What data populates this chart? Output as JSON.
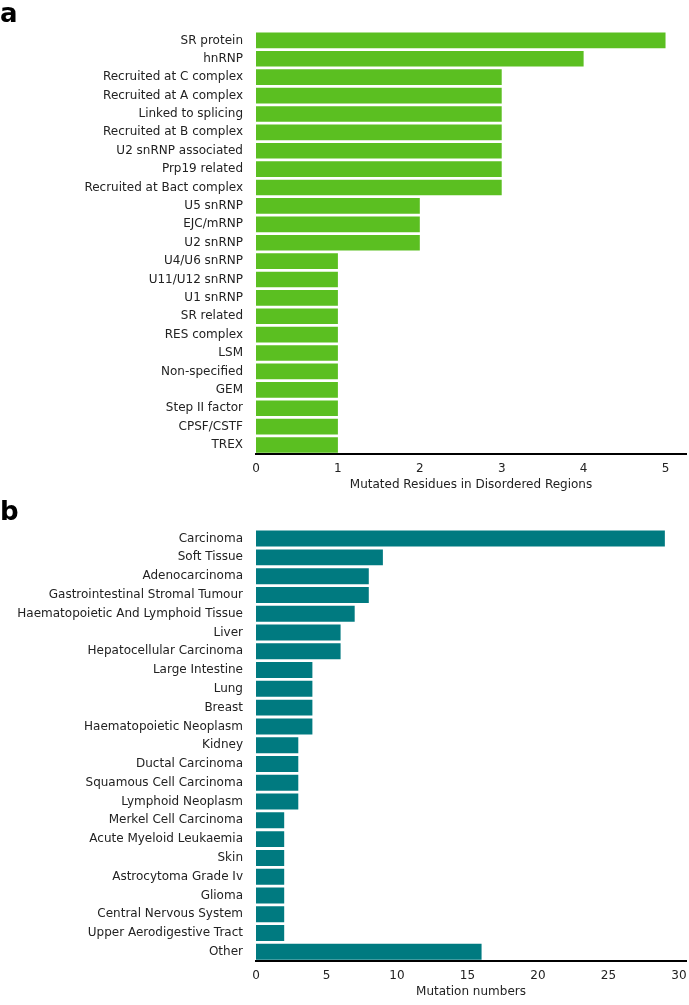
{
  "chart_data": [
    {
      "type": "bar",
      "orientation": "horizontal",
      "title": "a",
      "xlabel": "Mutated Residues in Disordered Regions",
      "color": "#5bbf21",
      "grid": false,
      "legend": false,
      "categories": [
        "SR protein",
        "hnRNP",
        "Recruited at C complex",
        "Recruited at A complex",
        "Linked to splicing",
        "Recruited at B complex",
        "U2 snRNP associated",
        "Prp19 related",
        "Recruited at Bact complex",
        "U5 snRNP",
        "EJC/mRNP",
        "U2 snRNP",
        "U4/U6 snRNP",
        "U11/U12 snRNP",
        "U1 snRNP",
        "SR related",
        "RES complex",
        "LSM",
        "Non-specified",
        "GEM",
        "Step II factor",
        "CPSF/CSTF",
        "TREX"
      ],
      "values": [
        5,
        4,
        3,
        3,
        3,
        3,
        3,
        3,
        3,
        2,
        2,
        2,
        1,
        1,
        1,
        1,
        1,
        1,
        1,
        1,
        1,
        1,
        1
      ],
      "xlim": [
        0,
        5.25
      ],
      "xticks": [
        0,
        1,
        2,
        3,
        4,
        5
      ]
    },
    {
      "type": "bar",
      "orientation": "horizontal",
      "title": "b",
      "xlabel": "Mutation numbers",
      "color": "#007a80",
      "grid": false,
      "legend": false,
      "categories": [
        "Carcinoma",
        "Soft Tissue",
        "Adenocarcinoma",
        "Gastrointestinal Stromal Tumour",
        "Haematopoietic And Lymphoid Tissue",
        "Liver",
        "Hepatocellular Carcinoma",
        "Large Intestine",
        "Lung",
        "Breast",
        "Haematopoietic Neoplasm",
        "Kidney",
        "Ductal Carcinoma",
        "Squamous Cell Carcinoma",
        "Lymphoid Neoplasm",
        "Merkel Cell Carcinoma",
        "Acute Myeloid Leukaemia",
        "Skin",
        "Astrocytoma Grade Iv",
        "Glioma",
        "Central Nervous System",
        "Upper Aerodigestive Tract",
        "Other"
      ],
      "values": [
        29,
        9,
        8,
        8,
        7,
        6,
        6,
        4,
        4,
        4,
        4,
        3,
        3,
        3,
        3,
        2,
        2,
        2,
        2,
        2,
        2,
        2,
        16
      ],
      "xlim": [
        0,
        30.5
      ],
      "xticks": [
        0,
        5,
        10,
        15,
        20,
        25,
        30
      ]
    }
  ]
}
